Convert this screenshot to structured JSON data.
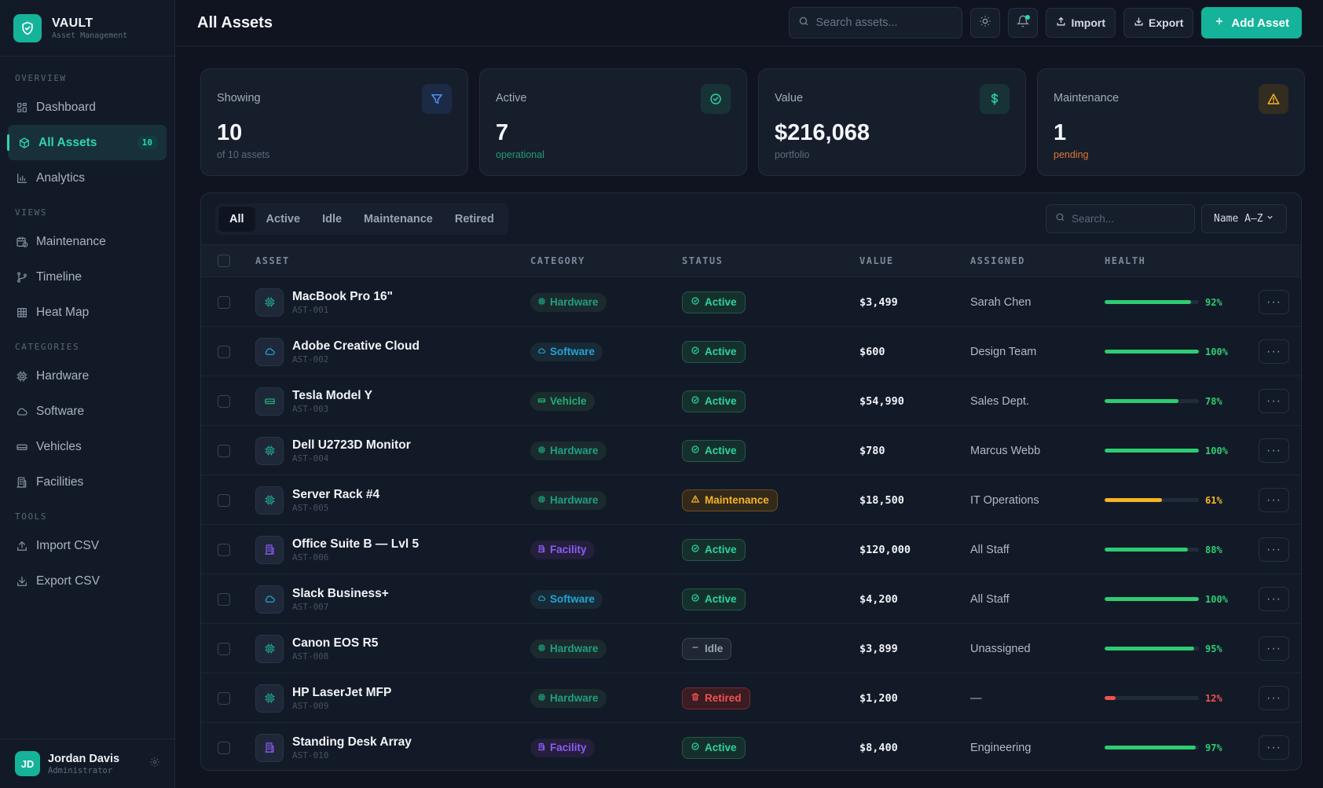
{
  "brand": {
    "name": "VAULT",
    "subtitle": "Asset Management"
  },
  "sidebar": {
    "sections": [
      {
        "title": "OVERVIEW",
        "items": [
          {
            "label": "Dashboard",
            "icon": "grid-icon"
          },
          {
            "label": "All Assets",
            "icon": "cube-icon",
            "badge": "10",
            "active": true
          },
          {
            "label": "Analytics",
            "icon": "bar-chart-icon"
          }
        ]
      },
      {
        "title": "VIEWS",
        "items": [
          {
            "label": "Maintenance",
            "icon": "calendar-clock-icon"
          },
          {
            "label": "Timeline",
            "icon": "git-branch-icon"
          },
          {
            "label": "Heat Map",
            "icon": "table-grid-icon"
          }
        ]
      },
      {
        "title": "CATEGORIES",
        "items": [
          {
            "label": "Hardware",
            "icon": "cpu-icon"
          },
          {
            "label": "Software",
            "icon": "cloud-icon"
          },
          {
            "label": "Vehicles",
            "icon": "car-icon"
          },
          {
            "label": "Facilities",
            "icon": "building-icon"
          }
        ]
      },
      {
        "title": "TOOLS",
        "items": [
          {
            "label": "Import CSV",
            "icon": "upload-icon"
          },
          {
            "label": "Export CSV",
            "icon": "download-icon"
          }
        ]
      }
    ]
  },
  "user": {
    "initials": "JD",
    "name": "Jordan Davis",
    "role": "Administrator"
  },
  "header": {
    "title": "All Assets",
    "search_placeholder": "Search assets...",
    "import_label": "Import",
    "export_label": "Export",
    "add_label": "Add Asset"
  },
  "stats": [
    {
      "label": "Showing",
      "value": "10",
      "sub": "of 10 assets",
      "icon": "filter-icon",
      "icon_color": "#4f8ff7",
      "icon_bg": "#1c2b45",
      "sub_color": "#5e6a7e"
    },
    {
      "label": "Active",
      "value": "7",
      "sub": "operational",
      "icon": "check-circle-icon",
      "icon_color": "#2dd4a0",
      "icon_bg": "#173336",
      "sub_color": "#1f9e6e"
    },
    {
      "label": "Value",
      "value": "$216,068",
      "sub": "portfolio",
      "icon": "dollar-icon",
      "icon_color": "#2dd4b0",
      "icon_bg": "#173336",
      "sub_color": "#5e6a7e"
    },
    {
      "label": "Maintenance",
      "value": "1",
      "sub": "pending",
      "icon": "warning-icon",
      "icon_color": "#f5b524",
      "icon_bg": "#332c20",
      "sub_color": "#e0752f"
    }
  ],
  "filters": {
    "tabs": [
      "All",
      "Active",
      "Idle",
      "Maintenance",
      "Retired"
    ],
    "active_tab": "All",
    "search_placeholder": "Search...",
    "sort_value": "Name A–Z"
  },
  "table": {
    "columns": [
      "ASSET",
      "CATEGORY",
      "STATUS",
      "VALUE",
      "ASSIGNED",
      "HEALTH"
    ],
    "rows": [
      {
        "name": "MacBook Pro 16\"",
        "id": "AST-001",
        "category": "Hardware",
        "status": "Active",
        "value": "$3,499",
        "assigned": "Sarah Chen",
        "health": 92,
        "health_label": "92%"
      },
      {
        "name": "Adobe Creative Cloud",
        "id": "AST-002",
        "category": "Software",
        "status": "Active",
        "value": "$600",
        "assigned": "Design Team",
        "health": 100,
        "health_label": "100%"
      },
      {
        "name": "Tesla Model Y",
        "id": "AST-003",
        "category": "Vehicle",
        "status": "Active",
        "value": "$54,990",
        "assigned": "Sales Dept.",
        "health": 78,
        "health_label": "78%"
      },
      {
        "name": "Dell U2723D Monitor",
        "id": "AST-004",
        "category": "Hardware",
        "status": "Active",
        "value": "$780",
        "assigned": "Marcus Webb",
        "health": 100,
        "health_label": "100%"
      },
      {
        "name": "Server Rack #4",
        "id": "AST-005",
        "category": "Hardware",
        "status": "Maintenance",
        "value": "$18,500",
        "assigned": "IT Operations",
        "health": 61,
        "health_label": "61%"
      },
      {
        "name": "Office Suite B — Lvl 5",
        "id": "AST-006",
        "category": "Facility",
        "status": "Active",
        "value": "$120,000",
        "assigned": "All Staff",
        "health": 88,
        "health_label": "88%"
      },
      {
        "name": "Slack Business+",
        "id": "AST-007",
        "category": "Software",
        "status": "Active",
        "value": "$4,200",
        "assigned": "All Staff",
        "health": 100,
        "health_label": "100%"
      },
      {
        "name": "Canon EOS R5",
        "id": "AST-008",
        "category": "Hardware",
        "status": "Idle",
        "value": "$3,899",
        "assigned": "Unassigned",
        "health": 95,
        "health_label": "95%"
      },
      {
        "name": "HP LaserJet MFP",
        "id": "AST-009",
        "category": "Hardware",
        "status": "Retired",
        "value": "$1,200",
        "assigned": "—",
        "health": 12,
        "health_label": "12%"
      },
      {
        "name": "Standing Desk Array",
        "id": "AST-010",
        "category": "Facility",
        "status": "Active",
        "value": "$8,400",
        "assigned": "Engineering",
        "health": 97,
        "health_label": "97%"
      }
    ]
  },
  "colors": {
    "accent": "#15b39a",
    "hardware": "#1f9e82",
    "software": "#22a3d6",
    "vehicle": "#1fae78",
    "facility": "#8b5cf6",
    "active": "#2dd4a0",
    "maintenance": "#f5b524",
    "idle": "#9aa3b3",
    "retired": "#f05252",
    "health_good": "#2ecc71",
    "health_warn": "#f5b524",
    "health_bad": "#f05252"
  }
}
